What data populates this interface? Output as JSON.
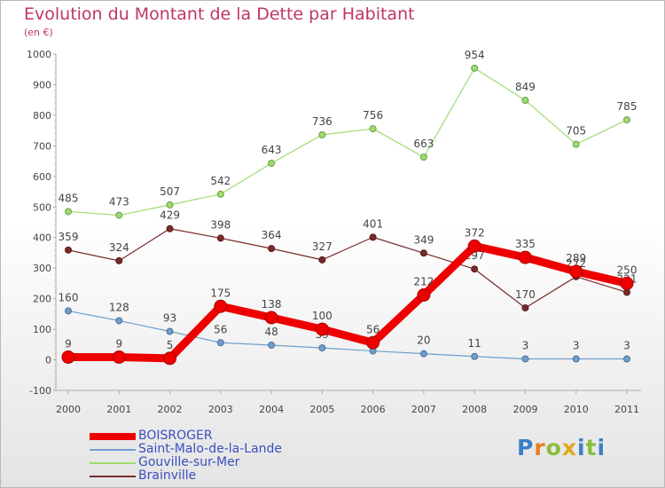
{
  "header": {
    "title": "Evolution du Montant de la Dette par Habitant",
    "subtitle": "(en €)"
  },
  "logo": {
    "letters": [
      "P",
      "r",
      "o",
      "x",
      "i",
      "t",
      "i"
    ],
    "colors": [
      "#3d7fc9",
      "#e57f1f",
      "#8bbd3c",
      "#e0a81f",
      "#3d7fc9",
      "#8bbd3c",
      "#3d7fc9"
    ]
  },
  "chart_data": {
    "type": "line",
    "title": "Evolution du Montant de la Dette par Habitant",
    "subtitle": "(en €)",
    "x": [
      2000,
      2001,
      2002,
      2003,
      2004,
      2005,
      2006,
      2007,
      2008,
      2009,
      2010,
      2011
    ],
    "ylim": [
      -100,
      1000
    ],
    "yticks": [
      -100,
      0,
      100,
      200,
      300,
      400,
      500,
      600,
      700,
      800,
      900,
      1000
    ],
    "grid": false,
    "legend_position": "bottom-left",
    "series": [
      {
        "name": "Saint-Malo-de-la-Lande",
        "color": "#6f9fce",
        "width": "thin",
        "values": [
          160,
          128,
          93,
          56,
          48,
          39,
          29,
          20,
          11,
          3,
          3,
          3
        ],
        "labels": [
          "160",
          "128",
          "93",
          "56",
          "48",
          "39",
          "",
          "20",
          "11",
          "3",
          "3",
          "3"
        ]
      },
      {
        "name": "Gouville-sur-Mer",
        "color": "#9ddc6e",
        "width": "thin",
        "values": [
          485,
          473,
          507,
          542,
          643,
          736,
          756,
          663,
          954,
          849,
          705,
          785
        ],
        "labels": [
          "485",
          "473",
          "507",
          "542",
          "643",
          "736",
          "756",
          "663",
          "954",
          "849",
          "705",
          "785"
        ]
      },
      {
        "name": "Brainville",
        "color": "#7a2a2a",
        "width": "thin",
        "values": [
          359,
          324,
          429,
          398,
          364,
          327,
          401,
          349,
          297,
          170,
          272,
          221
        ],
        "labels": [
          "359",
          "324",
          "429",
          "398",
          "364",
          "327",
          "401",
          "349",
          "297",
          "170",
          "272",
          "221"
        ]
      },
      {
        "name": "BOISROGER",
        "color": "#ee0000",
        "width": "thick",
        "values": [
          9,
          9,
          5,
          175,
          138,
          100,
          56,
          212,
          372,
          335,
          289,
          250
        ],
        "labels": [
          "9",
          "9",
          "5",
          "175",
          "138",
          "100",
          "56",
          "212",
          "372",
          "335",
          "289",
          "250"
        ]
      }
    ],
    "legend": [
      {
        "name": "BOISROGER",
        "color": "#ee0000"
      },
      {
        "name": "Saint-Malo-de-la-Lande",
        "color": "#6f9fce"
      },
      {
        "name": "Gouville-sur-Mer",
        "color": "#9ddc6e"
      },
      {
        "name": "Brainville",
        "color": "#7a2a2a"
      }
    ]
  }
}
